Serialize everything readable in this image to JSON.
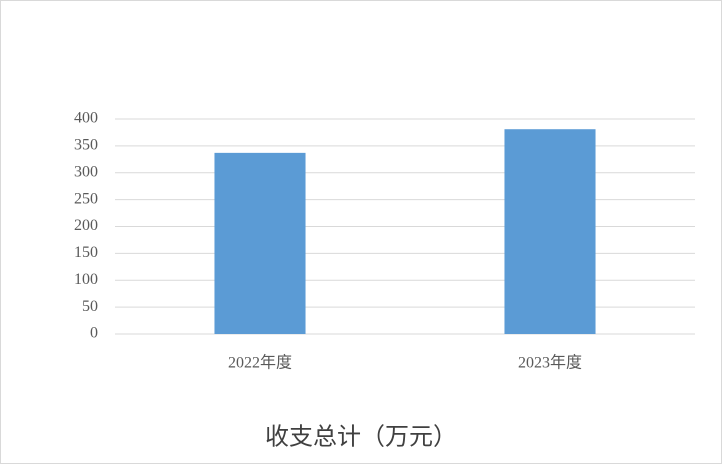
{
  "chart_data": {
    "type": "bar",
    "title": "收支总计（万元）",
    "categories": [
      "2022年度",
      "2023年度"
    ],
    "values": [
      337,
      381
    ],
    "color": "#5b9bd5",
    "ylim": [
      0,
      400
    ],
    "yticks": [
      0,
      50,
      100,
      150,
      200,
      250,
      300,
      350,
      400
    ],
    "grid": true
  }
}
